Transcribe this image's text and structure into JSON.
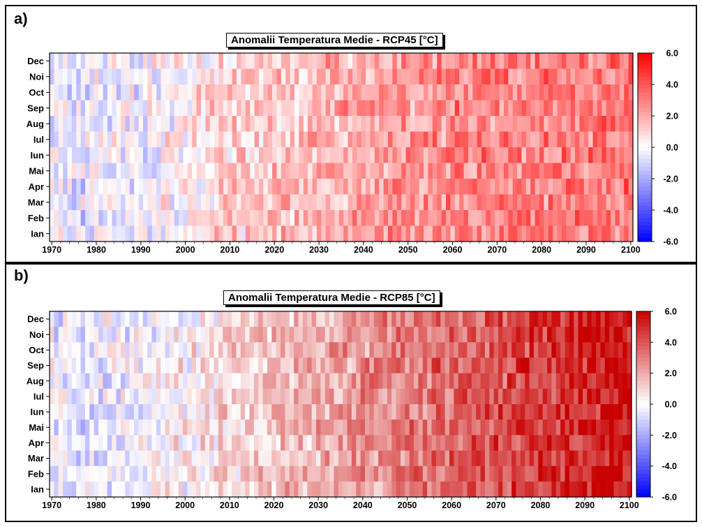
{
  "panels": [
    {
      "label": "a)",
      "title": "Anomalii Temperatura Medie - RCP45 [°C]",
      "scenario": "RCP45"
    },
    {
      "label": "b)",
      "title": "Anomalii Temperatura Medie - RCP85 [°C]",
      "scenario": "RCP85"
    }
  ],
  "chart_data": [
    {
      "type": "heatmap",
      "title": "Anomalii Temperatura Medie - RCP45 [°C]",
      "x_range": [
        1970,
        2100
      ],
      "x_ticks": [
        "1970",
        "1980",
        "1990",
        "2000",
        "2010",
        "2020",
        "2030",
        "2040",
        "2050",
        "2060",
        "2070",
        "2080",
        "2090",
        "2100"
      ],
      "y_categories": [
        "Dec",
        "Noi",
        "Oct",
        "Sep",
        "Aug",
        "Iul",
        "Iun",
        "Mai",
        "Apr",
        "Mar",
        "Feb",
        "Ian"
      ],
      "colorbar": {
        "min": -6.0,
        "max": 6.0,
        "ticks": [
          "6.0",
          "4.0",
          "2.0",
          "0.0",
          "-2.0",
          "-4.0",
          "-6.0"
        ],
        "low_color": "#0000ff",
        "mid_color": "#ffffff",
        "high_color": "#ff0000"
      },
      "trend_anchors": [
        [
          1970,
          -0.4
        ],
        [
          1980,
          -0.5
        ],
        [
          1990,
          -0.2
        ],
        [
          2000,
          0.3
        ],
        [
          2010,
          1.0
        ],
        [
          2020,
          1.3
        ],
        [
          2030,
          1.8
        ],
        [
          2040,
          2.1
        ],
        [
          2050,
          2.4
        ],
        [
          2060,
          2.7
        ],
        [
          2070,
          2.9
        ],
        [
          2080,
          3.0
        ],
        [
          2090,
          3.1
        ],
        [
          2100,
          3.2
        ]
      ],
      "noise_amplitude": 1.4,
      "seed": 45
    },
    {
      "type": "heatmap",
      "title": "Anomalii Temperatura Medie - RCP85 [°C]",
      "x_range": [
        1970,
        2100
      ],
      "x_ticks": [
        "1970",
        "1980",
        "1990",
        "2000",
        "2010",
        "2020",
        "2030",
        "2040",
        "2050",
        "2060",
        "2070",
        "2080",
        "2090",
        "2100"
      ],
      "y_categories": [
        "Dec",
        "Noi",
        "Oct",
        "Sep",
        "Aug",
        "Iul",
        "Iun",
        "Mai",
        "Apr",
        "Mar",
        "Feb",
        "Ian"
      ],
      "colorbar": {
        "min": -6.0,
        "max": 6.0,
        "ticks": [
          "6.0",
          "4.0",
          "2.0",
          "0.0",
          "-2.0",
          "-4.0",
          "-6.0"
        ],
        "low_color": "#0000ff",
        "mid_color": "#ffffff",
        "high_color": "#c80000"
      },
      "trend_anchors": [
        [
          1970,
          -0.4
        ],
        [
          1980,
          -0.5
        ],
        [
          1990,
          -0.2
        ],
        [
          2000,
          0.3
        ],
        [
          2010,
          1.0
        ],
        [
          2020,
          1.4
        ],
        [
          2030,
          1.9
        ],
        [
          2040,
          2.5
        ],
        [
          2050,
          3.0
        ],
        [
          2060,
          3.6
        ],
        [
          2070,
          4.1
        ],
        [
          2080,
          4.6
        ],
        [
          2090,
          5.1
        ],
        [
          2100,
          5.6
        ]
      ],
      "noise_amplitude": 1.3,
      "seed": 85
    }
  ]
}
